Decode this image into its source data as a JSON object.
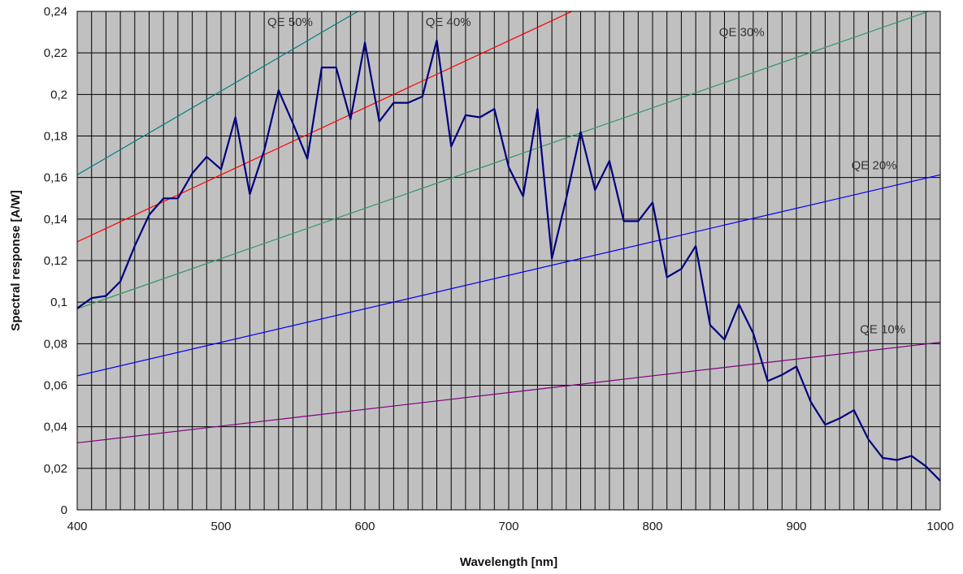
{
  "chart_data": {
    "type": "line",
    "xlabel": "Wavelength [nm]",
    "ylabel": "Spectral response [A/W]",
    "xlim": [
      400,
      1000
    ],
    "ylim": [
      0,
      0.24
    ],
    "x_ticks": [
      400,
      500,
      600,
      700,
      800,
      900,
      1000
    ],
    "x_tick_labels": [
      "400",
      "500",
      "600",
      "700",
      "800",
      "900",
      "1000"
    ],
    "y_ticks": [
      0,
      0.02,
      0.04,
      0.06,
      0.08,
      0.1,
      0.12,
      0.14,
      0.16,
      0.18,
      0.2,
      0.22,
      0.24
    ],
    "y_tick_labels": [
      "0",
      "0,02",
      "0,04",
      "0,06",
      "0,08",
      "0,1",
      "0,12",
      "0,14",
      "0,16",
      "0,18",
      "0,2",
      "0,22",
      "0,24"
    ],
    "x_minor_step": 10,
    "grid": true,
    "background_color": "#c0c0c0",
    "series": [
      {
        "color": "#000080",
        "x": [
          400,
          410,
          420,
          430,
          440,
          450,
          460,
          470,
          480,
          490,
          500,
          510,
          520,
          530,
          540,
          550,
          560,
          570,
          580,
          590,
          600,
          610,
          620,
          630,
          640,
          650,
          660,
          670,
          680,
          690,
          700,
          710,
          720,
          730,
          740,
          750,
          760,
          770,
          780,
          790,
          800,
          810,
          820,
          830,
          840,
          850,
          860,
          870,
          880,
          890,
          900,
          910,
          920,
          930,
          940,
          950,
          960,
          970,
          980,
          990,
          1000
        ],
        "y": [
          0.097,
          0.102,
          0.103,
          0.11,
          0.127,
          0.142,
          0.15,
          0.15,
          0.162,
          0.17,
          0.164,
          0.189,
          0.152,
          0.173,
          0.202,
          0.186,
          0.169,
          0.213,
          0.213,
          0.188,
          0.225,
          0.187,
          0.196,
          0.196,
          0.199,
          0.226,
          0.175,
          0.19,
          0.189,
          0.193,
          0.165,
          0.151,
          0.193,
          0.121,
          0.15,
          0.182,
          0.154,
          0.168,
          0.139,
          0.139,
          0.148,
          0.112,
          0.116,
          0.127,
          0.089,
          0.082,
          0.099,
          0.085,
          0.062,
          0.065,
          0.069,
          0.052,
          0.041,
          0.044,
          0.048,
          0.034,
          0.025,
          0.024,
          0.026,
          0.021,
          0.014
        ]
      }
    ],
    "qe_lines": [
      {
        "label": "QE 10%",
        "qe": 0.1,
        "color": "#800080",
        "label_x": 960,
        "label_y": 0.085
      },
      {
        "label": "QE 20%",
        "qe": 0.2,
        "color": "#0000ff",
        "label_x": 954,
        "label_y": 0.164
      },
      {
        "label": "QE 30%",
        "qe": 0.3,
        "color": "#339966",
        "label_x": 862,
        "label_y": 0.228
      },
      {
        "label": "QE 40%",
        "qe": 0.4,
        "color": "#ff0000",
        "label_x": 658,
        "label_y": 0.233
      },
      {
        "label": "QE 50%",
        "qe": 0.5,
        "color": "#008080",
        "label_x": 548,
        "label_y": 0.233
      }
    ]
  }
}
